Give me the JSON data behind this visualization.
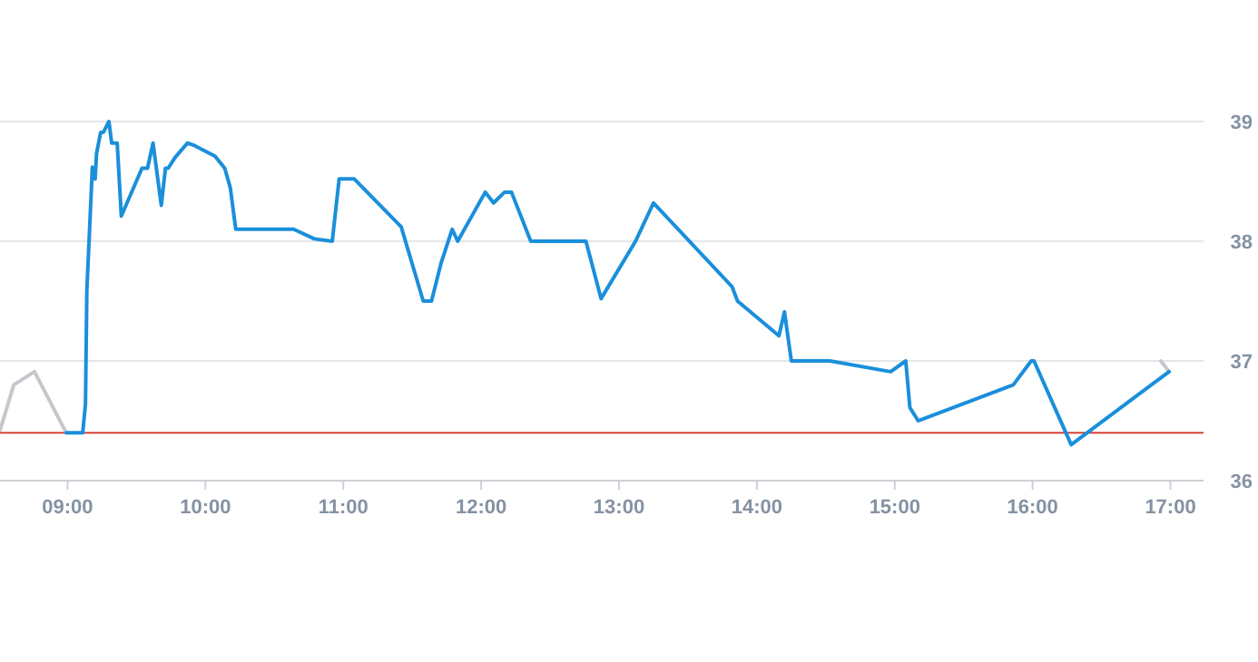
{
  "chart_data": {
    "type": "line",
    "xlim": [
      8.51,
      17.24
    ],
    "ylim": [
      36,
      39
    ],
    "xticks": [
      {
        "value": 9,
        "label": "09:00"
      },
      {
        "value": 10,
        "label": "10:00"
      },
      {
        "value": 11,
        "label": "11:00"
      },
      {
        "value": 12,
        "label": "12:00"
      },
      {
        "value": 13,
        "label": "13:00"
      },
      {
        "value": 14,
        "label": "14:00"
      },
      {
        "value": 15,
        "label": "15:00"
      },
      {
        "value": 16,
        "label": "16:00"
      },
      {
        "value": 17,
        "label": "17:00"
      }
    ],
    "yticks": [
      36,
      37,
      38,
      39
    ],
    "grid": "y",
    "marker": "none",
    "line_style": "solid",
    "ref_lines": [
      {
        "axis": "y",
        "value": 36.4,
        "color": "#d9403a"
      }
    ],
    "series": [
      {
        "color": "#c4c8cc",
        "x": [
          8.51,
          8.61,
          8.76,
          8.99,
          12.0,
          16.93,
          16.99
        ],
        "values": [
          36.42,
          36.8,
          36.91,
          36.4,
          null,
          37.0,
          36.91
        ]
      },
      {
        "color": "#1a8fdb",
        "x": [
          8.99,
          9.11,
          9.13,
          9.14,
          9.18,
          9.2,
          9.21,
          9.24,
          9.26,
          9.3,
          9.32,
          9.36,
          9.39,
          9.54,
          9.58,
          9.62,
          9.68,
          9.71,
          9.73,
          9.78,
          9.87,
          9.92,
          10.07,
          10.14,
          10.18,
          10.22,
          10.64,
          10.79,
          10.92,
          10.97,
          11.08,
          11.42,
          11.58,
          11.64,
          11.71,
          11.79,
          11.83,
          12.03,
          12.09,
          12.17,
          12.22,
          12.36,
          12.76,
          12.87,
          13.12,
          13.25,
          13.82,
          13.86,
          14.16,
          14.2,
          14.25,
          14.53,
          14.97,
          15.08,
          15.11,
          15.17,
          15.86,
          15.99,
          16.01,
          16.28,
          16.99
        ],
        "values": [
          36.4,
          36.4,
          36.64,
          37.59,
          38.62,
          38.52,
          38.73,
          38.91,
          38.91,
          39.0,
          38.82,
          38.82,
          38.21,
          38.61,
          38.61,
          38.82,
          38.3,
          38.61,
          38.61,
          38.7,
          38.82,
          38.8,
          38.71,
          38.61,
          38.45,
          38.1,
          38.1,
          38.02,
          38.0,
          38.52,
          38.52,
          38.12,
          37.5,
          37.5,
          37.82,
          38.1,
          38.0,
          38.41,
          38.32,
          38.41,
          38.41,
          38.0,
          38.0,
          37.52,
          38.0,
          38.32,
          37.62,
          37.5,
          37.21,
          37.41,
          37.0,
          37.0,
          36.91,
          37.0,
          36.61,
          36.5,
          36.8,
          37.0,
          37.0,
          36.3,
          36.91
        ]
      }
    ]
  }
}
